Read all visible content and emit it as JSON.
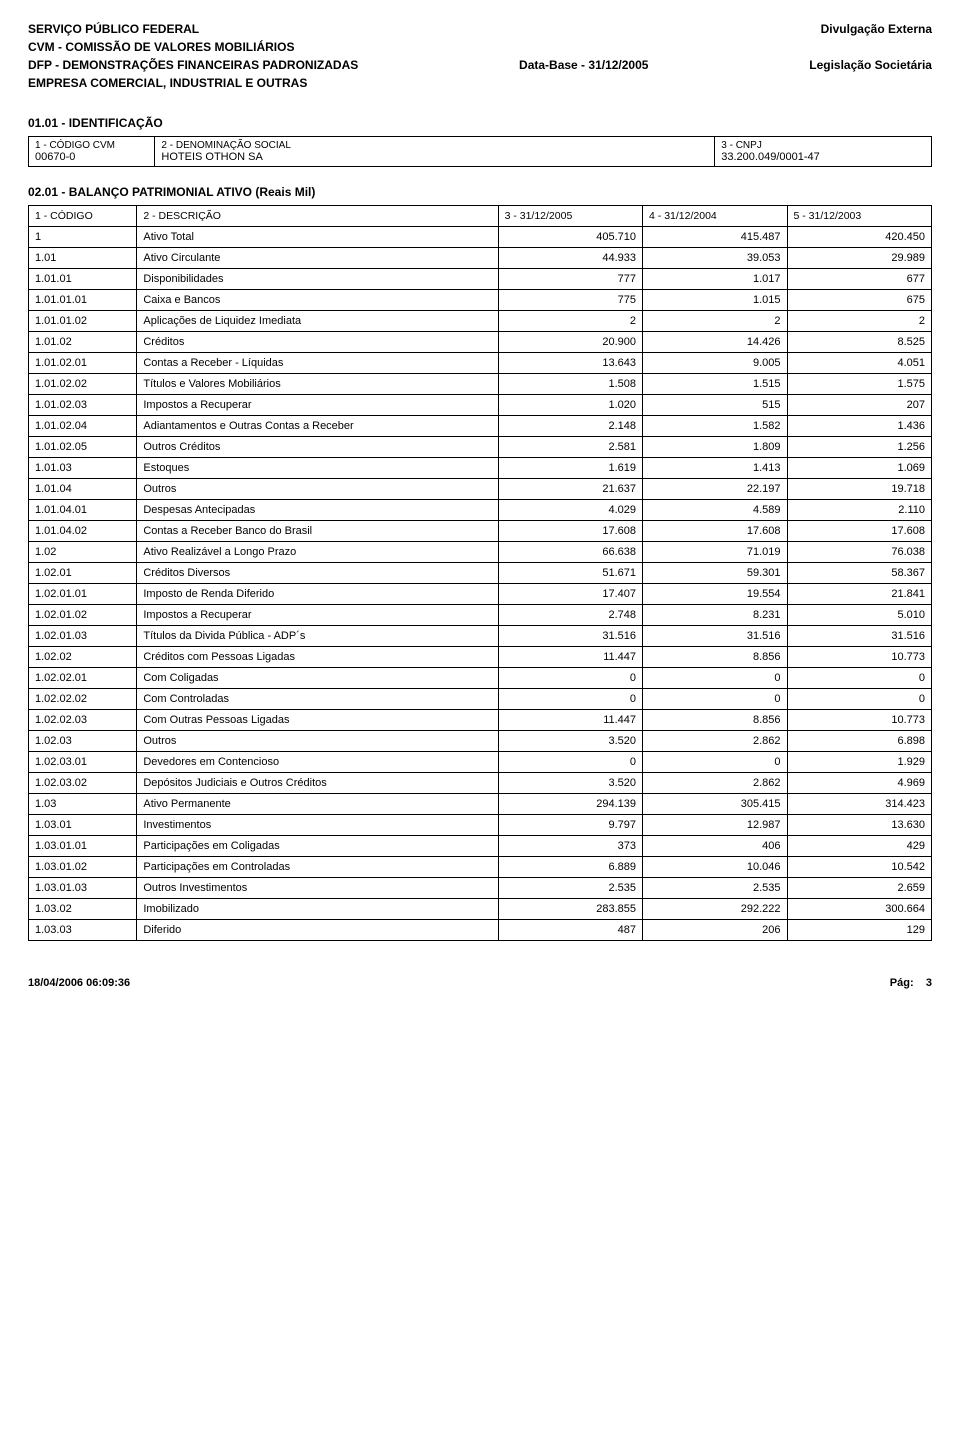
{
  "header": {
    "l1_left": "SERVIÇO PÚBLICO FEDERAL",
    "l1_right": "Divulgação Externa",
    "l2_left": "CVM - COMISSÃO DE VALORES MOBILIÁRIOS",
    "l3_left": "DFP - DEMONSTRAÇÕES FINANCEIRAS PADRONIZADAS",
    "l3_mid": "Data-Base - 31/12/2005",
    "l3_right": "Legislação Societária",
    "l4_left": "EMPRESA COMERCIAL, INDUSTRIAL E OUTRAS"
  },
  "ident": {
    "section": "01.01 - IDENTIFICAÇÃO",
    "col1_lbl": "1 - CÓDIGO CVM",
    "col1_val": "00670-0",
    "col2_lbl": "2 - DENOMINAÇÃO SOCIAL",
    "col2_val": "HOTEIS OTHON SA",
    "col3_lbl": "3 - CNPJ",
    "col3_val": "33.200.049/0001-47"
  },
  "balance": {
    "title": "02.01 - BALANÇO PATRIMONIAL ATIVO (Reais Mil)",
    "headers": [
      "1 - CÓDIGO",
      "2 - DESCRIÇÃO",
      "3 - 31/12/2005",
      "4 - 31/12/2004",
      "5 - 31/12/2003"
    ],
    "rows": [
      [
        "1",
        "Ativo Total",
        "405.710",
        "415.487",
        "420.450"
      ],
      [
        "1.01",
        "Ativo Circulante",
        "44.933",
        "39.053",
        "29.989"
      ],
      [
        "1.01.01",
        "Disponibilidades",
        "777",
        "1.017",
        "677"
      ],
      [
        "1.01.01.01",
        "Caixa e Bancos",
        "775",
        "1.015",
        "675"
      ],
      [
        "1.01.01.02",
        "Aplicações de Liquidez Imediata",
        "2",
        "2",
        "2"
      ],
      [
        "1.01.02",
        "Créditos",
        "20.900",
        "14.426",
        "8.525"
      ],
      [
        "1.01.02.01",
        "Contas a Receber - Líquidas",
        "13.643",
        "9.005",
        "4.051"
      ],
      [
        "1.01.02.02",
        "Títulos e Valores Mobiliários",
        "1.508",
        "1.515",
        "1.575"
      ],
      [
        "1.01.02.03",
        "Impostos a Recuperar",
        "1.020",
        "515",
        "207"
      ],
      [
        "1.01.02.04",
        "Adiantamentos e Outras Contas a Receber",
        "2.148",
        "1.582",
        "1.436"
      ],
      [
        "1.01.02.05",
        "Outros Créditos",
        "2.581",
        "1.809",
        "1.256"
      ],
      [
        "1.01.03",
        "Estoques",
        "1.619",
        "1.413",
        "1.069"
      ],
      [
        "1.01.04",
        "Outros",
        "21.637",
        "22.197",
        "19.718"
      ],
      [
        "1.01.04.01",
        "Despesas Antecipadas",
        "4.029",
        "4.589",
        "2.110"
      ],
      [
        "1.01.04.02",
        "Contas a Receber Banco do Brasil",
        "17.608",
        "17.608",
        "17.608"
      ],
      [
        "1.02",
        "Ativo Realizável a Longo Prazo",
        "66.638",
        "71.019",
        "76.038"
      ],
      [
        "1.02.01",
        "Créditos Diversos",
        "51.671",
        "59.301",
        "58.367"
      ],
      [
        "1.02.01.01",
        "Imposto de Renda Diferido",
        "17.407",
        "19.554",
        "21.841"
      ],
      [
        "1.02.01.02",
        "Impostos a Recuperar",
        "2.748",
        "8.231",
        "5.010"
      ],
      [
        "1.02.01.03",
        "Títulos da Divida Pública - ADP´s",
        "31.516",
        "31.516",
        "31.516"
      ],
      [
        "1.02.02",
        "Créditos com Pessoas Ligadas",
        "11.447",
        "8.856",
        "10.773"
      ],
      [
        "1.02.02.01",
        "Com Coligadas",
        "0",
        "0",
        "0"
      ],
      [
        "1.02.02.02",
        "Com Controladas",
        "0",
        "0",
        "0"
      ],
      [
        "1.02.02.03",
        "Com Outras Pessoas Ligadas",
        "11.447",
        "8.856",
        "10.773"
      ],
      [
        "1.02.03",
        "Outros",
        "3.520",
        "2.862",
        "6.898"
      ],
      [
        "1.02.03.01",
        "Devedores em Contencioso",
        "0",
        "0",
        "1.929"
      ],
      [
        "1.02.03.02",
        "Depósitos Judiciais e Outros Créditos",
        "3.520",
        "2.862",
        "4.969"
      ],
      [
        "1.03",
        "Ativo Permanente",
        "294.139",
        "305.415",
        "314.423"
      ],
      [
        "1.03.01",
        "Investimentos",
        "9.797",
        "12.987",
        "13.630"
      ],
      [
        "1.03.01.01",
        "Participações em Coligadas",
        "373",
        "406",
        "429"
      ],
      [
        "1.03.01.02",
        "Participações em Controladas",
        "6.889",
        "10.046",
        "10.542"
      ],
      [
        "1.03.01.03",
        "Outros Investimentos",
        "2.535",
        "2.535",
        "2.659"
      ],
      [
        "1.03.02",
        "Imobilizado",
        "283.855",
        "292.222",
        "300.664"
      ],
      [
        "1.03.03",
        "Diferido",
        "487",
        "206",
        "129"
      ]
    ]
  },
  "footer": {
    "left": "18/04/2006 06:09:36",
    "right_label": "Pág:",
    "right_value": "3"
  }
}
